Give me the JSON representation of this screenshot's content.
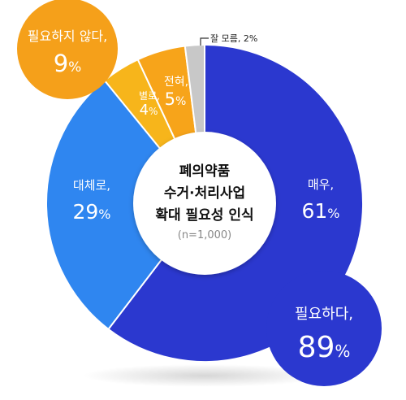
{
  "chart_data": {
    "type": "donut",
    "title": [
      "폐의약품",
      "수거·처리사업",
      "확대 필요성 인식"
    ],
    "subtitle": "(n=1,000)",
    "slices": [
      {
        "label": "매우,",
        "value": 61,
        "display": "61",
        "color": "#2b38cf"
      },
      {
        "label": "대체로,",
        "value": 29,
        "display": "29",
        "color": "#2f86f0"
      },
      {
        "label": "별로,",
        "value": 4,
        "display": "4",
        "color": "#f7b51b"
      },
      {
        "label": "전혀,",
        "value": 5,
        "display": "5",
        "color": "#f7a41a"
      },
      {
        "label": "잘 모름, 2%",
        "value": 2,
        "display": "2",
        "color": "#c8c8c8"
      }
    ],
    "groups": [
      {
        "label": "필요하다,",
        "value": 89,
        "display": "89",
        "color": "#2b38cf"
      },
      {
        "label": "필요하지 않다,",
        "value": 9,
        "display": "9",
        "color": "#f5a01a"
      }
    ],
    "unit": "%"
  }
}
